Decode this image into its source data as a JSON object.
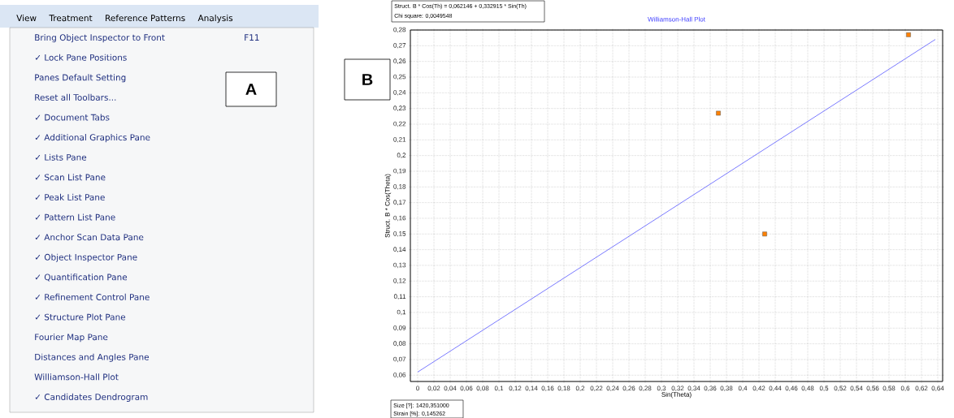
{
  "chart_data": [
    {
      "type": "other",
      "title": "A",
      "annotations": [
        "View",
        "Treatment",
        "Reference Patterns",
        "Analysis",
        "F11",
        "Bring Object Inspector to Front",
        "✓ Lock Pane Positions",
        "Panes Default Setting",
        "Reset all Toolbars...",
        "✓ Document Tabs",
        "✓ Additional Graphics Pane",
        "✓ Lists Pane",
        "✓ Scan List Pane",
        "✓ Peak List Pane",
        "✓ Pattern List Pane",
        "✓ Anchor Scan Data Pane",
        "✓ Object Inspector Pane",
        "✓ Quantification Pane",
        "✓ Refinement Control Pane",
        "✓ Structure Plot Pane",
        "Fourier Map Pane",
        "Distances and Angles Pane",
        "Williamson-Hall Plot",
        "✓ Candidates Dendrogram"
      ]
    },
    {
      "type": "scatter",
      "title": "Williamson-Hall Plot",
      "xlabel": "Sin(Theta)",
      "ylabel": "Struct. B * Cos(Theta)",
      "marker": "square",
      "grid": true,
      "xlim": [
        -0.009,
        0.646
      ],
      "ylim": [
        0.056,
        0.28
      ],
      "xticks": [
        0,
        {
          "value": 0.02,
          "label": "0,02"
        },
        {
          "value": 0.04,
          "label": "0,04"
        },
        {
          "value": 0.06,
          "label": "0,06"
        },
        {
          "value": 0.08,
          "label": "0,08"
        },
        {
          "value": 0.1,
          "label": "0,1"
        },
        {
          "value": 0.12,
          "label": "0,12"
        },
        {
          "value": 0.14,
          "label": "0,14"
        },
        {
          "value": 0.16,
          "label": "0,16"
        },
        {
          "value": 0.18,
          "label": "0,18"
        },
        {
          "value": 0.2,
          "label": "0,2"
        },
        {
          "value": 0.22,
          "label": "0,22"
        },
        {
          "value": 0.24,
          "label": "0,24"
        },
        {
          "value": 0.26,
          "label": "0,26"
        },
        {
          "value": 0.28,
          "label": "0,28"
        },
        {
          "value": 0.3,
          "label": "0,3"
        },
        {
          "value": 0.32,
          "label": "0,32"
        },
        {
          "value": 0.34,
          "label": "0,34"
        },
        {
          "value": 0.36,
          "label": "0,36"
        },
        {
          "value": 0.38,
          "label": "0,38"
        },
        {
          "value": 0.4,
          "label": "0,4"
        },
        {
          "value": 0.42,
          "label": "0,42"
        },
        {
          "value": 0.44,
          "label": "0,44"
        },
        {
          "value": 0.46,
          "label": "0,46"
        },
        {
          "value": 0.48,
          "label": "0,48"
        },
        {
          "value": 0.5,
          "label": "0,5"
        },
        {
          "value": 0.52,
          "label": "0,52"
        },
        {
          "value": 0.54,
          "label": "0,54"
        },
        {
          "value": 0.56,
          "label": "0,56"
        },
        {
          "value": 0.58,
          "label": "0,58"
        },
        {
          "value": 0.6,
          "label": "0,6"
        },
        {
          "value": 0.62,
          "label": "0,62"
        },
        {
          "value": 0.64,
          "label": "0,64"
        }
      ],
      "yticks": [
        {
          "value": 0.06,
          "label": "0,06"
        },
        {
          "value": 0.07,
          "label": "0,07"
        },
        {
          "value": 0.08,
          "label": "0,08"
        },
        {
          "value": 0.09,
          "label": "0,09"
        },
        {
          "value": 0.1,
          "label": "0,1"
        },
        {
          "value": 0.11,
          "label": "0,11"
        },
        {
          "value": 0.12,
          "label": "0,12"
        },
        {
          "value": 0.13,
          "label": "0,13"
        },
        {
          "value": 0.14,
          "label": "0,14"
        },
        {
          "value": 0.15,
          "label": "0,15"
        },
        {
          "value": 0.16,
          "label": "0,16"
        },
        {
          "value": 0.17,
          "label": "0,17"
        },
        {
          "value": 0.18,
          "label": "0,18"
        },
        {
          "value": 0.19,
          "label": "0,19"
        },
        {
          "value": 0.2,
          "label": "0,2"
        },
        {
          "value": 0.21,
          "label": "0,21"
        },
        {
          "value": 0.22,
          "label": "0,22"
        },
        {
          "value": 0.23,
          "label": "0,23"
        },
        {
          "value": 0.24,
          "label": "0,24"
        },
        {
          "value": 0.25,
          "label": "0,25"
        },
        {
          "value": 0.26,
          "label": "0,26"
        },
        {
          "value": 0.27,
          "label": "0,27"
        },
        {
          "value": 0.28,
          "label": "0,28"
        }
      ],
      "series": [
        {
          "type": "scatter",
          "color": "#ff8000",
          "x": [
            0.37,
            0.427,
            0.604
          ],
          "values": [
            0.227,
            0.15,
            0.277
          ]
        },
        {
          "type": "line",
          "marker": "none",
          "color": "#4040ff",
          "x": [
            0,
            0.637
          ],
          "values": [
            0.062,
            0.274
          ]
        }
      ],
      "annotations": [
        "Struct. B * Cos(Th) = 0,062146 + 0,332915 * Sin(Th)",
        "Chi square: 0,0049548",
        "Size [?]: 1420,351000",
        "Strain [%]: 0,145262",
        "B"
      ]
    }
  ]
}
